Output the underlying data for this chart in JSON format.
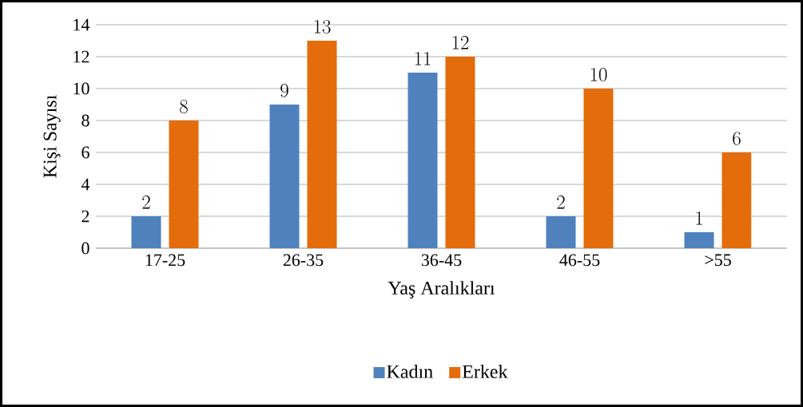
{
  "chart_data": {
    "type": "bar",
    "xlabel": "Yaş Aralıkları",
    "ylabel": "Kişi Sayısı",
    "categories": [
      "17-25",
      "26-35",
      "36-45",
      "46-55",
      ">55"
    ],
    "series": [
      {
        "name": "Kadın",
        "color": "#4f81bd",
        "values": [
          2,
          9,
          11,
          2,
          1
        ]
      },
      {
        "name": "Erkek",
        "color": "#e46c0a",
        "values": [
          8,
          13,
          12,
          10,
          6
        ]
      }
    ],
    "ylim": [
      0,
      14
    ],
    "yticks": [
      0,
      2,
      4,
      6,
      8,
      10,
      12,
      14
    ],
    "grid": "y",
    "legend": "bottom",
    "data_labels": true
  }
}
